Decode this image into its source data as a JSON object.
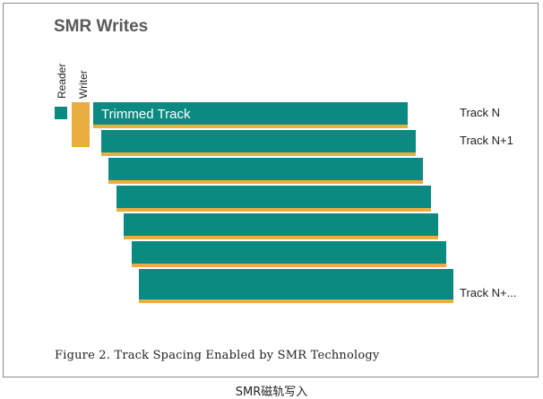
{
  "figure": {
    "title": "SMR Writes",
    "head_labels": {
      "reader": "Reader",
      "writer": "Writer"
    },
    "inside_track_label": "Trimmed Track",
    "track_labels": {
      "first": "Track N",
      "second": "Track N+1",
      "last": "Track N+..."
    },
    "track_count": 7,
    "colors": {
      "track": "#0b8a82",
      "shingle_edge": "#e9ae3f",
      "reader": "#0b8a82",
      "writer": "#e9ae3f",
      "title": "#58595b"
    },
    "caption": "Figure 2. Track Spacing Enabled by SMR Technology"
  },
  "page": {
    "subcaption": "SMR磁轨写入"
  }
}
